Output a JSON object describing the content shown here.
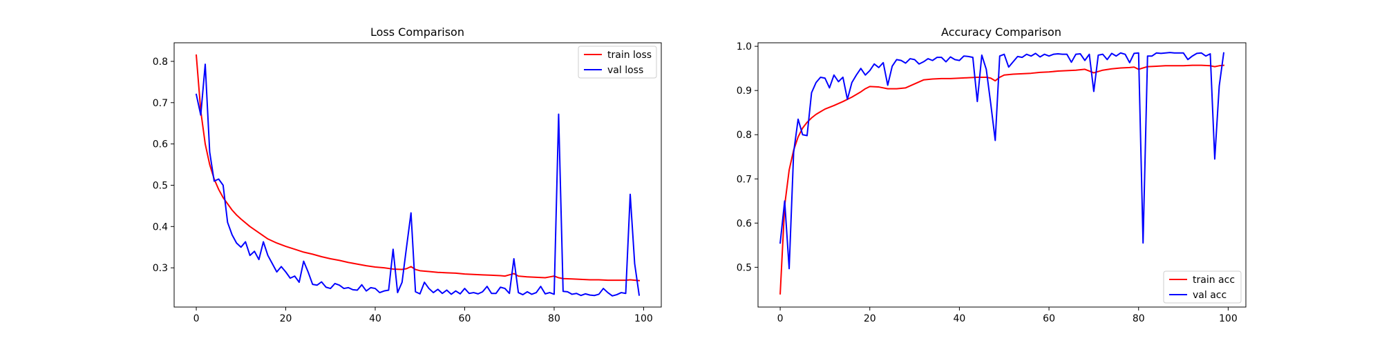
{
  "figure": {
    "background": "#ffffff"
  },
  "chart_data": [
    {
      "type": "line",
      "title": "Loss Comparison",
      "xlabel": "",
      "ylabel": "",
      "xlim": [
        -4.95,
        103.95
      ],
      "ylim": [
        0.205,
        0.845
      ],
      "xticks": [
        0,
        20,
        40,
        60,
        80,
        100
      ],
      "yticks": [
        0.3,
        0.4,
        0.5,
        0.6,
        0.7,
        0.8
      ],
      "grid": false,
      "legend_position": "upper-right",
      "series": [
        {
          "name": "train loss",
          "color": "#ff0000",
          "x": [
            0,
            1,
            2,
            3,
            4,
            5,
            6,
            7,
            8,
            9,
            10,
            12,
            14,
            16,
            18,
            20,
            22,
            24,
            26,
            28,
            30,
            32,
            34,
            36,
            38,
            40,
            42,
            44,
            46,
            47,
            48,
            49,
            50,
            52,
            54,
            56,
            58,
            60,
            62,
            64,
            66,
            68,
            69,
            70,
            71,
            72,
            74,
            76,
            78,
            79,
            80,
            81,
            82,
            84,
            86,
            88,
            90,
            92,
            94,
            96,
            97,
            98,
            99
          ],
          "y": [
            0.815,
            0.68,
            0.6,
            0.55,
            0.515,
            0.49,
            0.47,
            0.455,
            0.44,
            0.428,
            0.418,
            0.4,
            0.385,
            0.37,
            0.36,
            0.352,
            0.345,
            0.338,
            0.333,
            0.327,
            0.322,
            0.318,
            0.313,
            0.309,
            0.305,
            0.302,
            0.3,
            0.297,
            0.296,
            0.298,
            0.303,
            0.296,
            0.293,
            0.291,
            0.289,
            0.288,
            0.287,
            0.285,
            0.284,
            0.283,
            0.282,
            0.281,
            0.28,
            0.283,
            0.286,
            0.28,
            0.278,
            0.277,
            0.276,
            0.278,
            0.28,
            0.276,
            0.274,
            0.273,
            0.272,
            0.271,
            0.271,
            0.27,
            0.27,
            0.27,
            0.271,
            0.27,
            0.269
          ]
        },
        {
          "name": "val loss",
          "color": "#0000ff",
          "x": [
            0,
            1,
            2,
            3,
            4,
            5,
            6,
            7,
            8,
            9,
            10,
            11,
            12,
            13,
            14,
            15,
            16,
            17,
            18,
            19,
            20,
            21,
            22,
            23,
            24,
            25,
            26,
            27,
            28,
            29,
            30,
            31,
            32,
            33,
            34,
            35,
            36,
            37,
            38,
            39,
            40,
            41,
            42,
            43,
            44,
            45,
            46,
            47,
            48,
            49,
            50,
            51,
            52,
            53,
            54,
            55,
            56,
            57,
            58,
            59,
            60,
            61,
            62,
            63,
            64,
            65,
            66,
            67,
            68,
            69,
            70,
            71,
            72,
            73,
            74,
            75,
            76,
            77,
            78,
            79,
            80,
            81,
            82,
            83,
            84,
            85,
            86,
            87,
            88,
            89,
            90,
            91,
            92,
            93,
            94,
            95,
            96,
            97,
            98,
            99
          ],
          "y": [
            0.72,
            0.67,
            0.793,
            0.58,
            0.51,
            0.515,
            0.5,
            0.41,
            0.38,
            0.36,
            0.35,
            0.363,
            0.33,
            0.34,
            0.32,
            0.363,
            0.33,
            0.31,
            0.29,
            0.303,
            0.29,
            0.275,
            0.28,
            0.265,
            0.316,
            0.29,
            0.26,
            0.258,
            0.266,
            0.253,
            0.25,
            0.262,
            0.258,
            0.25,
            0.252,
            0.247,
            0.246,
            0.259,
            0.244,
            0.252,
            0.25,
            0.24,
            0.244,
            0.246,
            0.345,
            0.24,
            0.265,
            0.35,
            0.433,
            0.242,
            0.237,
            0.265,
            0.25,
            0.24,
            0.248,
            0.238,
            0.246,
            0.236,
            0.244,
            0.237,
            0.25,
            0.238,
            0.24,
            0.237,
            0.242,
            0.255,
            0.238,
            0.238,
            0.253,
            0.25,
            0.238,
            0.322,
            0.24,
            0.235,
            0.242,
            0.236,
            0.24,
            0.255,
            0.237,
            0.24,
            0.236,
            0.672,
            0.243,
            0.242,
            0.236,
            0.238,
            0.233,
            0.237,
            0.234,
            0.233,
            0.236,
            0.25,
            0.24,
            0.232,
            0.235,
            0.24,
            0.238,
            0.478,
            0.31,
            0.234
          ]
        }
      ]
    },
    {
      "type": "line",
      "title": "Accuracy Comparison",
      "xlabel": "",
      "ylabel": "",
      "xlim": [
        -4.95,
        103.95
      ],
      "ylim": [
        0.41,
        1.008
      ],
      "xticks": [
        0,
        20,
        40,
        60,
        80,
        100
      ],
      "yticks": [
        0.5,
        0.6,
        0.7,
        0.8,
        0.9,
        1.0
      ],
      "grid": false,
      "legend_position": "lower-right",
      "series": [
        {
          "name": "train acc",
          "color": "#ff0000",
          "x": [
            0,
            1,
            2,
            3,
            4,
            5,
            6,
            7,
            8,
            9,
            10,
            12,
            14,
            16,
            18,
            19,
            20,
            22,
            24,
            26,
            28,
            30,
            32,
            34,
            36,
            38,
            40,
            42,
            44,
            46,
            47,
            48,
            49,
            50,
            52,
            54,
            56,
            58,
            60,
            62,
            64,
            66,
            68,
            69,
            70,
            72,
            74,
            76,
            78,
            79,
            80,
            81,
            82,
            84,
            86,
            88,
            90,
            92,
            94,
            96,
            97,
            98,
            99
          ],
          "y": [
            0.44,
            0.64,
            0.72,
            0.765,
            0.795,
            0.815,
            0.828,
            0.838,
            0.846,
            0.852,
            0.858,
            0.866,
            0.875,
            0.885,
            0.897,
            0.904,
            0.909,
            0.908,
            0.904,
            0.904,
            0.906,
            0.915,
            0.924,
            0.926,
            0.927,
            0.927,
            0.928,
            0.929,
            0.93,
            0.93,
            0.928,
            0.922,
            0.93,
            0.935,
            0.937,
            0.938,
            0.939,
            0.941,
            0.942,
            0.944,
            0.945,
            0.946,
            0.948,
            0.944,
            0.94,
            0.946,
            0.949,
            0.951,
            0.952,
            0.953,
            0.948,
            0.951,
            0.954,
            0.955,
            0.956,
            0.956,
            0.956,
            0.957,
            0.957,
            0.956,
            0.954,
            0.956,
            0.957
          ]
        },
        {
          "name": "val acc",
          "color": "#0000ff",
          "x": [
            0,
            1,
            2,
            3,
            4,
            5,
            6,
            7,
            8,
            9,
            10,
            11,
            12,
            13,
            14,
            15,
            16,
            17,
            18,
            19,
            20,
            21,
            22,
            23,
            24,
            25,
            26,
            27,
            28,
            29,
            30,
            31,
            32,
            33,
            34,
            35,
            36,
            37,
            38,
            39,
            40,
            41,
            42,
            43,
            44,
            45,
            46,
            47,
            48,
            49,
            50,
            51,
            52,
            53,
            54,
            55,
            56,
            57,
            58,
            59,
            60,
            61,
            62,
            63,
            64,
            65,
            66,
            67,
            68,
            69,
            70,
            71,
            72,
            73,
            74,
            75,
            76,
            77,
            78,
            79,
            80,
            81,
            82,
            83,
            84,
            85,
            86,
            87,
            88,
            89,
            90,
            91,
            92,
            93,
            94,
            95,
            96,
            97,
            98,
            99
          ],
          "y": [
            0.555,
            0.65,
            0.497,
            0.76,
            0.835,
            0.8,
            0.798,
            0.895,
            0.918,
            0.93,
            0.928,
            0.906,
            0.935,
            0.92,
            0.93,
            0.88,
            0.918,
            0.935,
            0.95,
            0.935,
            0.945,
            0.96,
            0.952,
            0.963,
            0.912,
            0.955,
            0.97,
            0.968,
            0.962,
            0.972,
            0.97,
            0.96,
            0.965,
            0.972,
            0.968,
            0.975,
            0.975,
            0.965,
            0.976,
            0.97,
            0.968,
            0.978,
            0.977,
            0.975,
            0.875,
            0.98,
            0.948,
            0.87,
            0.787,
            0.978,
            0.982,
            0.953,
            0.965,
            0.977,
            0.975,
            0.982,
            0.978,
            0.984,
            0.976,
            0.982,
            0.978,
            0.982,
            0.983,
            0.982,
            0.982,
            0.964,
            0.982,
            0.983,
            0.968,
            0.982,
            0.898,
            0.98,
            0.982,
            0.97,
            0.984,
            0.978,
            0.985,
            0.982,
            0.963,
            0.984,
            0.985,
            0.555,
            0.978,
            0.978,
            0.985,
            0.984,
            0.985,
            0.986,
            0.985,
            0.985,
            0.985,
            0.97,
            0.978,
            0.984,
            0.985,
            0.978,
            0.983,
            0.745,
            0.91,
            0.985
          ]
        }
      ]
    }
  ]
}
